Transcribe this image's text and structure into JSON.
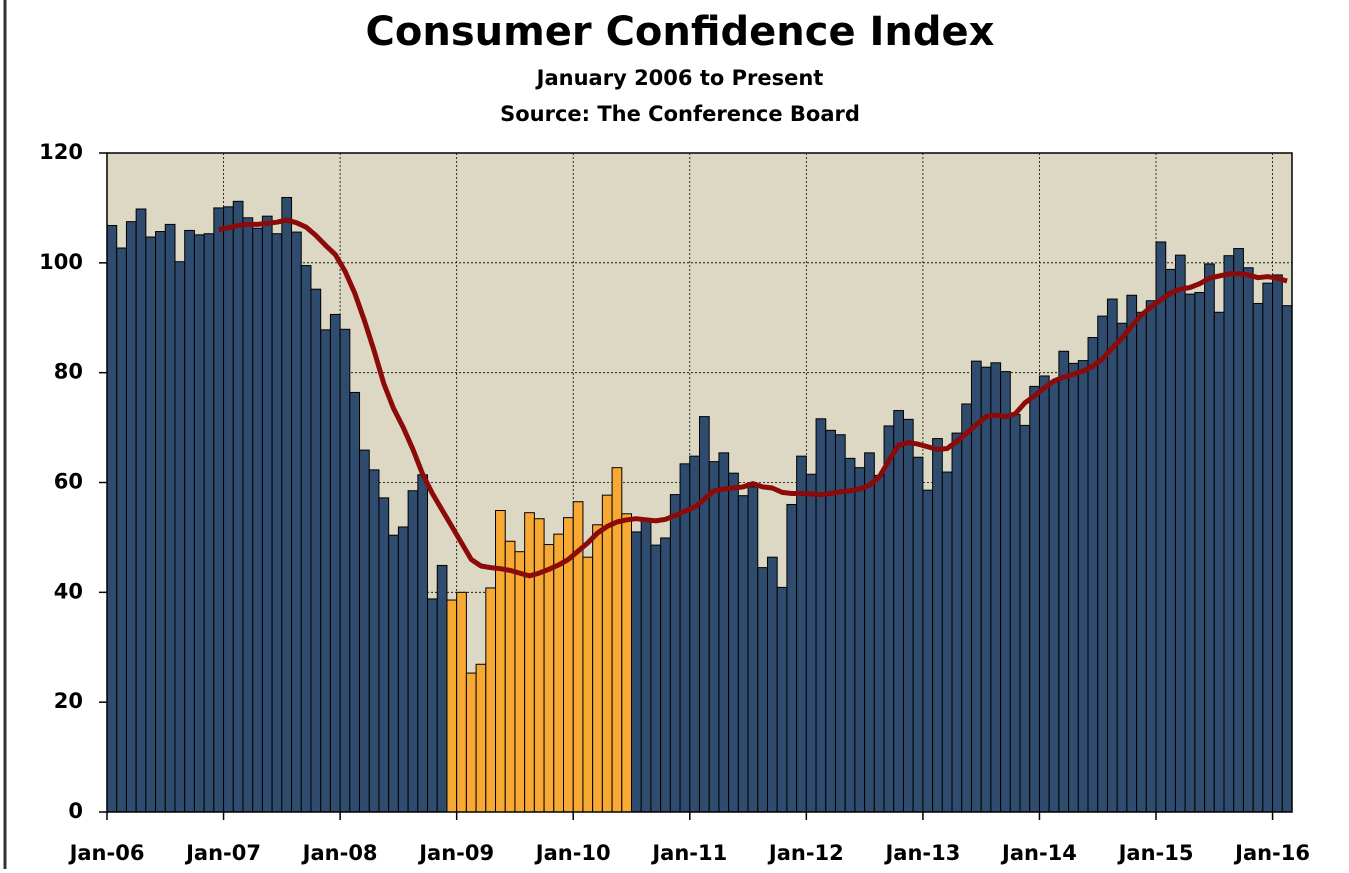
{
  "chart_data": {
    "type": "bar",
    "title": "Consumer Confidence Index",
    "subtitle": "January 2006 to Present",
    "source": "Source: The Conference Board",
    "categories": [
      "Jan-06",
      null,
      null,
      null,
      null,
      null,
      null,
      null,
      null,
      null,
      null,
      null,
      "Jan-07",
      null,
      null,
      null,
      null,
      null,
      null,
      null,
      null,
      null,
      null,
      null,
      "Jan-08",
      null,
      null,
      null,
      null,
      null,
      null,
      null,
      null,
      null,
      null,
      null,
      "Jan-09",
      null,
      null,
      null,
      null,
      null,
      null,
      null,
      null,
      null,
      null,
      null,
      "Jan-10",
      null,
      null,
      null,
      null,
      null,
      null,
      null,
      null,
      null,
      null,
      null,
      "Jan-11",
      null,
      null,
      null,
      null,
      null,
      null,
      null,
      null,
      null,
      null,
      null,
      "Jan-12",
      null,
      null,
      null,
      null,
      null,
      null,
      null,
      null,
      null,
      null,
      null,
      "Jan-13",
      null,
      null,
      null,
      null,
      null,
      null,
      null,
      null,
      null,
      null,
      null,
      "Jan-14",
      null,
      null,
      null,
      null,
      null,
      null,
      null,
      null,
      null,
      null,
      null,
      "Jan-15",
      null,
      null,
      null,
      null,
      null,
      null,
      null,
      null,
      null,
      null,
      null,
      "Jan-16",
      null
    ],
    "series": [
      {
        "type": "bar",
        "color": "#2f4b6e",
        "values": [
          106.8,
          102.7,
          107.5,
          109.8,
          104.7,
          105.7,
          107.0,
          100.2,
          105.9,
          105.1,
          105.3,
          110.0,
          110.2,
          111.2,
          108.2,
          106.3,
          108.5,
          105.3,
          111.9,
          105.6,
          99.5,
          95.2,
          87.8,
          90.6,
          87.9,
          76.4,
          65.9,
          62.3,
          57.2,
          50.4,
          51.9,
          58.5,
          61.4,
          38.8,
          44.9,
          null,
          null,
          null,
          null,
          null,
          null,
          null,
          null,
          null,
          null,
          null,
          null,
          null,
          null,
          null,
          null,
          null,
          null,
          null,
          51.0,
          53.2,
          48.6,
          49.9,
          57.8,
          63.4,
          64.8,
          72.0,
          63.8,
          65.4,
          61.7,
          57.6,
          59.2,
          44.5,
          46.4,
          40.9,
          56.0,
          64.8,
          61.5,
          71.6,
          69.5,
          68.7,
          64.4,
          62.7,
          65.4,
          61.3,
          70.3,
          73.1,
          71.5,
          64.6,
          58.6,
          68.0,
          61.9,
          69.0,
          74.3,
          82.1,
          81.0,
          81.8,
          80.2,
          72.4,
          70.4,
          77.5,
          79.4,
          78.3,
          83.9,
          81.7,
          82.2,
          86.4,
          90.3,
          93.4,
          89.0,
          94.1,
          91.0,
          93.1,
          103.8,
          98.8,
          101.4,
          94.3,
          94.6,
          99.8,
          91.0,
          101.3,
          102.6,
          99.1,
          92.6,
          96.3,
          97.8,
          92.2
        ]
      },
      {
        "type": "bar",
        "color": "#f7a933",
        "values": [
          null,
          null,
          null,
          null,
          null,
          null,
          null,
          null,
          null,
          null,
          null,
          null,
          null,
          null,
          null,
          null,
          null,
          null,
          null,
          null,
          null,
          null,
          null,
          null,
          null,
          null,
          null,
          null,
          null,
          null,
          null,
          null,
          null,
          null,
          null,
          38.6,
          40.0,
          25.3,
          26.9,
          40.8,
          54.9,
          49.3,
          47.4,
          54.5,
          53.4,
          48.7,
          50.6,
          53.6,
          56.5,
          46.4,
          52.3,
          57.7,
          62.7,
          54.3,
          null,
          null,
          null,
          null,
          null,
          null,
          null,
          null,
          null,
          null,
          null,
          null,
          null,
          null,
          null,
          null,
          null,
          null,
          null,
          null,
          null,
          null,
          null,
          null,
          null,
          null,
          null,
          null,
          null,
          null,
          null,
          null,
          null,
          null,
          null,
          null,
          null,
          null,
          null,
          null,
          null,
          null,
          null,
          null,
          null,
          null,
          null,
          null,
          null,
          null,
          null,
          null,
          null,
          null,
          null,
          null,
          null,
          null,
          null,
          null,
          null,
          null,
          null,
          null,
          null,
          null,
          null,
          null
        ]
      },
      {
        "type": "line",
        "color": "#8b0a0a",
        "values": [
          null,
          null,
          null,
          null,
          null,
          null,
          null,
          null,
          null,
          null,
          null,
          106.0,
          106.4,
          106.8,
          107.0,
          107.0,
          107.2,
          107.4,
          107.8,
          107.3,
          106.5,
          105.0,
          103.2,
          101.5,
          98.5,
          94.5,
          89.5,
          84.0,
          78.0,
          73.5,
          70.0,
          66.0,
          61.5,
          58.0,
          55.0,
          52.0,
          49.0,
          46.0,
          44.8,
          44.5,
          44.3,
          44.0,
          43.5,
          43.0,
          43.5,
          44.2,
          45.0,
          46.0,
          47.5,
          49.0,
          50.8,
          52.0,
          52.8,
          53.2,
          53.4,
          53.2,
          53.0,
          53.3,
          54.0,
          54.8,
          55.5,
          57.0,
          58.5,
          58.8,
          59.0,
          59.2,
          59.8,
          59.2,
          59.0,
          58.2,
          58.0,
          58.0,
          57.9,
          57.8,
          58.0,
          58.3,
          58.5,
          58.8,
          59.5,
          61.0,
          64.0,
          66.8,
          67.3,
          67.0,
          66.5,
          66.0,
          66.2,
          67.5,
          69.0,
          70.5,
          72.0,
          72.3,
          72.0,
          72.5,
          74.5,
          75.8,
          77.2,
          78.5,
          79.2,
          79.7,
          80.3,
          81.2,
          82.5,
          84.5,
          86.3,
          88.5,
          90.5,
          92.0,
          93.3,
          94.5,
          95.2,
          95.5,
          96.2,
          97.2,
          97.6,
          98.0,
          98.0,
          97.8,
          97.3,
          97.5,
          97.2,
          96.7
        ]
      }
    ],
    "ylim": [
      0,
      120
    ],
    "yticks": [
      0,
      20,
      40,
      60,
      80,
      100,
      120
    ],
    "grid": true,
    "plot_background": "#ddd8c3"
  }
}
